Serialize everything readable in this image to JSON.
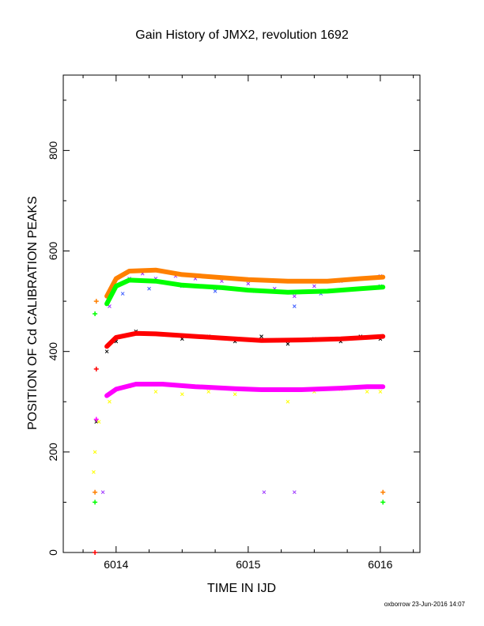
{
  "chart_data": {
    "type": "scatter",
    "title": "Gain History of JMX2, revolution 1692",
    "xlabel": "TIME IN IJD",
    "ylabel": "POSITION OF Cd CALIBRATION PEAKS",
    "xlim": [
      6013.6,
      6016.3
    ],
    "ylim": [
      0,
      950
    ],
    "xticks": [
      6014,
      6015,
      6016
    ],
    "yticks": [
      0,
      200,
      400,
      600,
      800
    ],
    "grid": false,
    "legend": "none",
    "series": [
      {
        "marker": "x",
        "color": "#9b30ff",
        "points": [
          [
            6013.95,
            490
          ],
          [
            6014.0,
            530
          ],
          [
            6014.1,
            545
          ],
          [
            6014.2,
            555
          ],
          [
            6014.3,
            545
          ],
          [
            6014.45,
            550
          ],
          [
            6014.6,
            545
          ],
          [
            6014.8,
            540
          ],
          [
            6015.0,
            535
          ],
          [
            6015.2,
            525
          ],
          [
            6015.35,
            510
          ],
          [
            6015.5,
            530
          ],
          [
            6015.7,
            540
          ],
          [
            6015.85,
            545
          ],
          [
            6016.0,
            550
          ],
          [
            6013.9,
            120
          ],
          [
            6015.12,
            120
          ],
          [
            6015.35,
            120
          ]
        ]
      },
      {
        "marker": "x",
        "color": "#3b5bff",
        "points": [
          [
            6014.05,
            515
          ],
          [
            6014.25,
            525
          ],
          [
            6014.5,
            530
          ],
          [
            6014.75,
            520
          ],
          [
            6015.05,
            520
          ],
          [
            6015.35,
            490
          ],
          [
            6015.55,
            515
          ],
          [
            6015.8,
            525
          ],
          [
            6016.0,
            530
          ]
        ]
      },
      {
        "marker": "x",
        "color": "#000000",
        "points": [
          [
            6013.93,
            400
          ],
          [
            6014.0,
            420
          ],
          [
            6014.15,
            440
          ],
          [
            6014.3,
            435
          ],
          [
            6014.5,
            425
          ],
          [
            6014.7,
            430
          ],
          [
            6014.9,
            420
          ],
          [
            6015.1,
            430
          ],
          [
            6015.3,
            415
          ],
          [
            6015.5,
            425
          ],
          [
            6015.7,
            420
          ],
          [
            6015.85,
            430
          ],
          [
            6016.0,
            425
          ],
          [
            6013.85,
            260
          ]
        ]
      },
      {
        "marker": "x",
        "color": "#ffff00",
        "points": [
          [
            6013.83,
            160
          ],
          [
            6013.84,
            200
          ],
          [
            6013.87,
            260
          ],
          [
            6013.95,
            300
          ],
          [
            6014.1,
            330
          ],
          [
            6014.3,
            320
          ],
          [
            6014.5,
            315
          ],
          [
            6014.7,
            320
          ],
          [
            6014.9,
            315
          ],
          [
            6015.1,
            325
          ],
          [
            6015.3,
            300
          ],
          [
            6015.5,
            320
          ],
          [
            6015.7,
            325
          ],
          [
            6015.9,
            320
          ],
          [
            6016.0,
            320
          ]
        ]
      },
      {
        "marker": "fit",
        "color": "#ff8000",
        "points": [
          [
            6013.93,
            510
          ],
          [
            6014.0,
            545
          ],
          [
            6014.1,
            560
          ],
          [
            6014.3,
            562
          ],
          [
            6014.5,
            553
          ],
          [
            6014.8,
            547
          ],
          [
            6015.0,
            543
          ],
          [
            6015.3,
            540
          ],
          [
            6015.6,
            540
          ],
          [
            6015.85,
            545
          ],
          [
            6016.02,
            548
          ]
        ]
      },
      {
        "marker": "fit",
        "color": "#00ff00",
        "points": [
          [
            6013.93,
            495
          ],
          [
            6014.0,
            530
          ],
          [
            6014.1,
            542
          ],
          [
            6014.3,
            540
          ],
          [
            6014.5,
            532
          ],
          [
            6014.8,
            527
          ],
          [
            6015.0,
            522
          ],
          [
            6015.3,
            518
          ],
          [
            6015.6,
            520
          ],
          [
            6015.85,
            525
          ],
          [
            6016.02,
            528
          ]
        ]
      },
      {
        "marker": "fit",
        "color": "#ff0000",
        "points": [
          [
            6013.93,
            410
          ],
          [
            6014.0,
            428
          ],
          [
            6014.15,
            436
          ],
          [
            6014.3,
            435
          ],
          [
            6014.6,
            430
          ],
          [
            6014.9,
            425
          ],
          [
            6015.1,
            422
          ],
          [
            6015.4,
            423
          ],
          [
            6015.7,
            425
          ],
          [
            6015.9,
            428
          ],
          [
            6016.02,
            430
          ]
        ]
      },
      {
        "marker": "fit",
        "color": "#ff00ff",
        "points": [
          [
            6013.93,
            312
          ],
          [
            6014.0,
            325
          ],
          [
            6014.15,
            335
          ],
          [
            6014.35,
            335
          ],
          [
            6014.6,
            330
          ],
          [
            6014.9,
            326
          ],
          [
            6015.1,
            324
          ],
          [
            6015.4,
            324
          ],
          [
            6015.7,
            327
          ],
          [
            6015.9,
            330
          ],
          [
            6016.02,
            330
          ]
        ]
      },
      {
        "marker": "+",
        "color": "#ff8000",
        "points": [
          [
            6013.85,
            500
          ],
          [
            6013.84,
            120
          ],
          [
            6016.02,
            120
          ]
        ]
      },
      {
        "marker": "+",
        "color": "#00ff00",
        "points": [
          [
            6013.84,
            475
          ],
          [
            6013.84,
            100
          ],
          [
            6016.02,
            100
          ]
        ]
      },
      {
        "marker": "+",
        "color": "#ff0000",
        "points": [
          [
            6013.85,
            365
          ],
          [
            6013.84,
            0
          ]
        ]
      },
      {
        "marker": "+",
        "color": "#ff00ff",
        "points": [
          [
            6013.85,
            265
          ]
        ]
      }
    ]
  },
  "credit": "oxborrow 23-Jun-2016 14:07"
}
